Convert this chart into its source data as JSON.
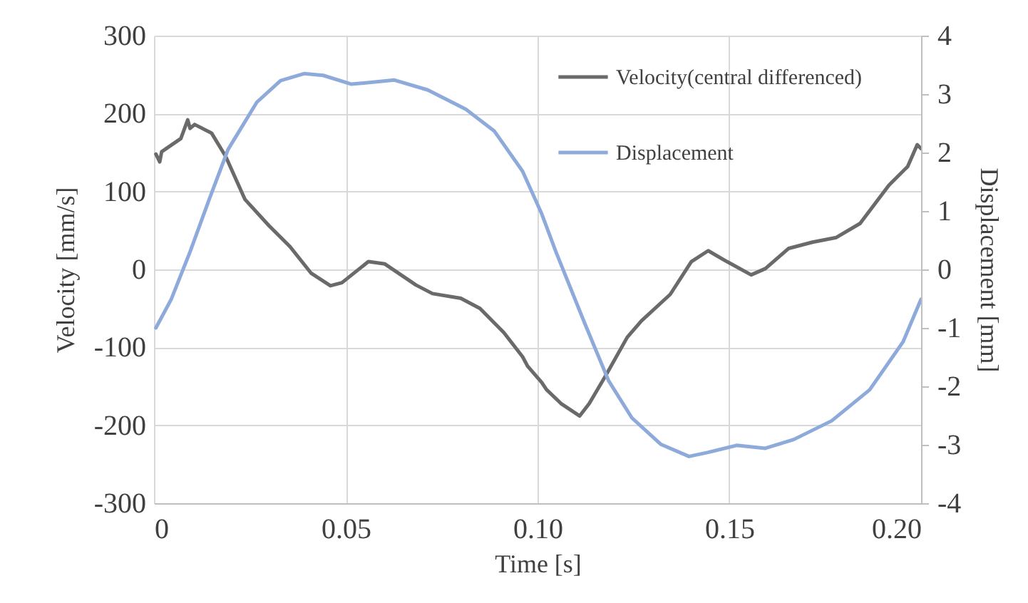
{
  "chart_data": {
    "type": "line",
    "xlabel": "Time [s]",
    "ylabel": "Velocity [mm/s]",
    "y2label": "Displacement [mm]",
    "xlim": [
      0,
      0.2
    ],
    "xticks": [
      0,
      0.05,
      {
        "value": 0.1,
        "label": "0.10"
      },
      0.15,
      {
        "value": 0.2,
        "label": "0.20"
      }
    ],
    "ylim": [
      -300,
      300
    ],
    "yticks": [
      -300,
      -200,
      -100,
      0,
      100,
      200,
      300
    ],
    "y2lim": [
      -4,
      4
    ],
    "y2ticks": [
      -4,
      -3,
      -2,
      -1,
      0,
      1,
      2,
      3,
      4
    ],
    "grid": true,
    "legend": "top right",
    "line_style": "solid",
    "marker": "none",
    "series": [
      {
        "name": "Velocity(central differenced)",
        "color": "#6b6969",
        "x": [
          0.0005,
          0.0015,
          0.002,
          0.007,
          0.0088,
          0.0094,
          0.0106,
          0.015,
          0.0187,
          0.0237,
          0.03,
          0.0355,
          0.041,
          0.046,
          0.049,
          0.0559,
          0.0602,
          0.0683,
          0.0726,
          0.08,
          0.085,
          0.0912,
          0.0961,
          0.0974,
          0.1011,
          0.1023,
          0.1061,
          0.111,
          0.1135,
          0.1178,
          0.1234,
          0.1271,
          0.1346,
          0.1401,
          0.1445,
          0.1494,
          0.1557,
          0.1594,
          0.1655,
          0.1717,
          0.1779,
          0.1841,
          0.1916,
          0.1965,
          0.199,
          0.2
        ],
        "values": [
          148,
          138,
          151,
          168,
          192,
          181,
          186,
          175,
          145,
          90,
          56,
          29,
          -5,
          -21,
          -17,
          10,
          7,
          -20,
          -31,
          -37,
          -50,
          -81,
          -112,
          -124,
          -145,
          -154,
          -172,
          -188,
          -172,
          -136,
          -87,
          -66,
          -32,
          10,
          24,
          10,
          -7,
          1,
          27,
          35,
          41,
          59,
          108,
          132,
          160,
          155
        ]
      },
      {
        "name": "Displacement",
        "color": "#8eaadb",
        "axis": "y2",
        "x": [
          0.0005,
          0.0045,
          0.0094,
          0.0144,
          0.0193,
          0.0268,
          0.033,
          0.0391,
          0.0441,
          0.0515,
          0.0627,
          0.0714,
          0.0813,
          0.0887,
          0.0961,
          0.1011,
          0.1048,
          0.1123,
          0.1185,
          0.1246,
          0.1321,
          0.1395,
          0.1445,
          0.1519,
          0.1594,
          0.1668,
          0.1767,
          0.1866,
          0.1953,
          0.2
        ],
        "values": [
          -1.0,
          -0.51,
          0.3,
          1.2,
          2.05,
          2.86,
          3.23,
          3.35,
          3.32,
          3.17,
          3.24,
          3.07,
          2.74,
          2.37,
          1.68,
          0.95,
          0.3,
          -0.92,
          -1.9,
          -2.54,
          -2.99,
          -3.2,
          -3.13,
          -3.01,
          -3.06,
          -2.91,
          -2.59,
          -2.06,
          -1.24,
          -0.51
        ]
      }
    ]
  }
}
